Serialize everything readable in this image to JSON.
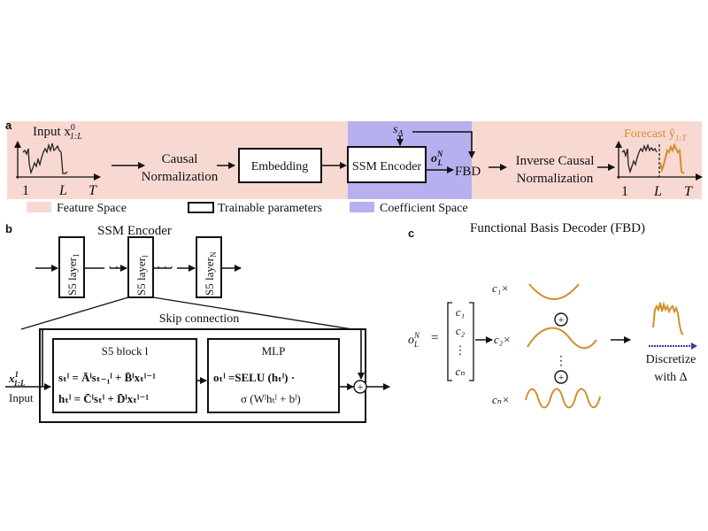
{
  "panel_a": {
    "letter": "a",
    "input_label": "Input x",
    "input_sup": "0",
    "input_sub": "1:L",
    "axis_ticks": [
      "1",
      "L",
      "T"
    ],
    "causal_norm": [
      "Causal",
      "Normalization"
    ],
    "embedding": "Embedding",
    "ssm_encoder": "SSM Encoder",
    "s_delta": "s",
    "delta_sym": "Δ",
    "o_label": "o",
    "o_sup": "N",
    "o_sub": "L",
    "fbd": "FBD",
    "inverse_norm": [
      "Inverse Causal",
      "Normalization"
    ],
    "forecast_label": "Forecast ŷ",
    "forecast_sub": "1:T",
    "legend": {
      "feature_space": "Feature Space",
      "trainable": "Trainable parameters",
      "coefficient_space": "Coefficient Space"
    },
    "colors": {
      "feature": "#f8d9d2",
      "coefficient": "#b7b0ef",
      "forecast": "#d18f2c"
    }
  },
  "panel_b": {
    "letter": "b",
    "title": "SSM Encoder",
    "layer1": "S5 layer",
    "layer1_sub": "1",
    "layerl": "S5 layer",
    "layerl_sub": "l",
    "layerN": "S5 layer",
    "layerN_sub": "N",
    "dots": "· · ·",
    "skip": "Skip connection",
    "input_x": "x",
    "input_sup": "1",
    "input_sub": "1:L",
    "input_word": "Input",
    "s5_block": "S5 block l",
    "eq1": "sₜˡ = Āˡsₜ₋₁ˡ + B̄ˡxₜˡ⁻¹",
    "eq2": "hₜˡ = C̄ˡsₜˡ + D̄ˡxₜˡ⁻¹",
    "mlp": "MLP",
    "eq3": "oₜˡ =SELU (hₜˡ) ·",
    "eq4": "σ (Wˡhₜˡ + bˡ)",
    "plus": "+"
  },
  "panel_c": {
    "letter": "c",
    "title": "Functional Basis Decoder (FBD)",
    "o_label": "o",
    "o_sup": "N",
    "o_sub": "L",
    "equals": "=",
    "vector": [
      "c₁",
      "c₂",
      "⋮",
      "cₙ"
    ],
    "c1x": "c₁×",
    "c2x": "c₂×",
    "cnx": "cₙ×",
    "plus": "+",
    "vdots": "⋮",
    "discretize": "Discretize",
    "with_delta": "with Δ"
  }
}
